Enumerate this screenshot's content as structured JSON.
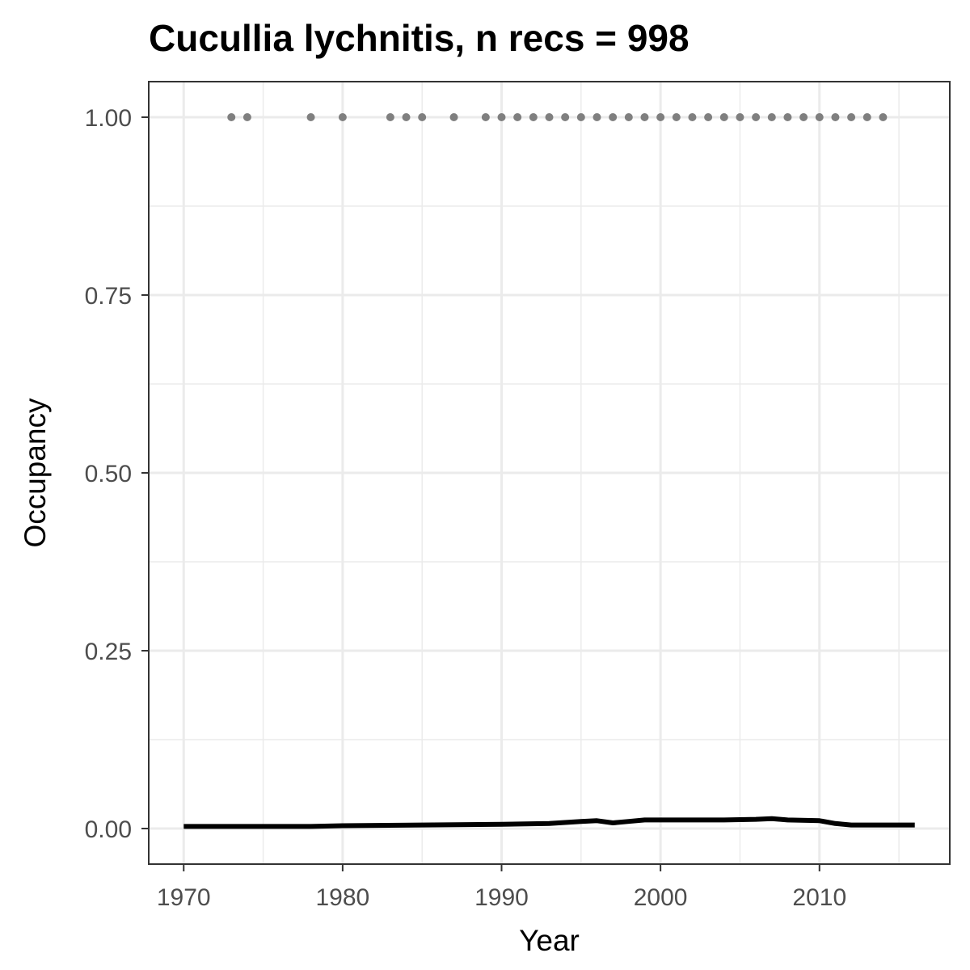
{
  "chart_data": {
    "type": "scatter",
    "title": "Cucullia lychnitis, n recs = 998",
    "xlabel": "Year",
    "ylabel": "Occupancy",
    "xlim": [
      1967.8,
      2018.2
    ],
    "ylim": [
      -0.05,
      1.05
    ],
    "x_ticks": [
      1970,
      1980,
      1990,
      2000,
      2010
    ],
    "x_tick_labels": [
      "1970",
      "1980",
      "1990",
      "2000",
      "2010"
    ],
    "y_ticks": [
      0,
      0.25,
      0.5,
      0.75,
      1
    ],
    "y_tick_labels": [
      "0.00",
      "0.25",
      "0.50",
      "0.75",
      "1.00"
    ],
    "x_minor_ticks": [
      1975,
      1985,
      1995,
      2005,
      2015
    ],
    "y_minor_ticks": [
      0.125,
      0.375,
      0.625,
      0.875
    ],
    "grid": true,
    "series": [
      {
        "kind": "points",
        "color": "#7f7f7f",
        "x": [
          1973,
          1974,
          1978,
          1980,
          1983,
          1984,
          1985,
          1987,
          1989,
          1990,
          1991,
          1992,
          1993,
          1994,
          1995,
          1996,
          1997,
          1998,
          1999,
          2000,
          2001,
          2002,
          2003,
          2004,
          2005,
          2006,
          2007,
          2008,
          2009,
          2010,
          2011,
          2012,
          2013,
          2014
        ],
        "y": [
          1,
          1,
          1,
          1,
          1,
          1,
          1,
          1,
          1,
          1,
          1,
          1,
          1,
          1,
          1,
          1,
          1,
          1,
          1,
          1,
          1,
          1,
          1,
          1,
          1,
          1,
          1,
          1,
          1,
          1,
          1,
          1,
          1,
          1
        ]
      },
      {
        "kind": "line",
        "color": "#000000",
        "x": [
          1970,
          1975,
          1978,
          1980,
          1985,
          1990,
          1993,
          1995,
          1996,
          1997,
          1998,
          1999,
          2000,
          2002,
          2004,
          2006,
          2007,
          2008,
          2010,
          2011,
          2012,
          2014,
          2016
        ],
        "y": [
          0.003,
          0.003,
          0.003,
          0.004,
          0.005,
          0.006,
          0.007,
          0.01,
          0.011,
          0.008,
          0.01,
          0.012,
          0.012,
          0.012,
          0.012,
          0.013,
          0.014,
          0.012,
          0.011,
          0.007,
          0.005,
          0.005,
          0.005
        ]
      }
    ]
  }
}
